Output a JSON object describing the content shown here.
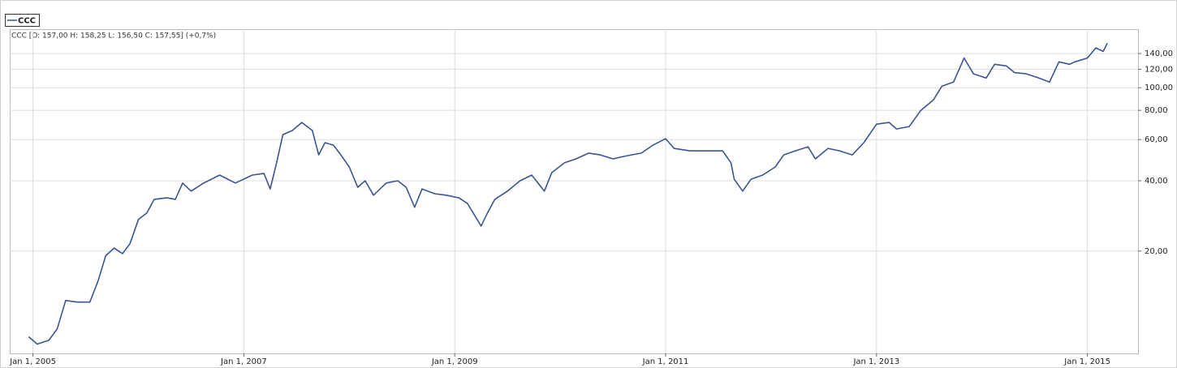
{
  "chart_data": {
    "type": "line",
    "annotation": "CCC [O: 157,00  H: 158,25  L: 156,50  C: 157,55] (+0,7%)",
    "log_scale": true,
    "grid": true,
    "legend": "top-left",
    "x": [
      2004.96,
      2005.04,
      2005.15,
      2005.23,
      2005.31,
      2005.42,
      2005.54,
      2005.62,
      2005.69,
      2005.77,
      2005.85,
      2005.92,
      2006.0,
      2006.08,
      2006.15,
      2006.27,
      2006.35,
      2006.42,
      2006.5,
      2006.62,
      2006.77,
      2006.92,
      2007.08,
      2007.19,
      2007.25,
      2007.31,
      2007.37,
      2007.46,
      2007.55,
      2007.65,
      2007.71,
      2007.77,
      2007.85,
      2007.92,
      2008.0,
      2008.08,
      2008.15,
      2008.23,
      2008.35,
      2008.46,
      2008.54,
      2008.62,
      2008.69,
      2008.81,
      2008.92,
      2009.04,
      2009.12,
      2009.19,
      2009.25,
      2009.31,
      2009.38,
      2009.5,
      2009.62,
      2009.73,
      2009.85,
      2009.92,
      2010.04,
      2010.15,
      2010.27,
      2010.38,
      2010.5,
      2010.62,
      2010.77,
      2010.88,
      2011.0,
      2011.08,
      2011.23,
      2011.38,
      2011.54,
      2011.62,
      2011.65,
      2011.73,
      2011.81,
      2011.92,
      2012.04,
      2012.12,
      2012.23,
      2012.35,
      2012.42,
      2012.54,
      2012.65,
      2012.77,
      2012.88,
      2013.0,
      2013.12,
      2013.19,
      2013.31,
      2013.42,
      2013.54,
      2013.62,
      2013.73,
      2013.83,
      2013.92,
      2014.04,
      2014.12,
      2014.23,
      2014.31,
      2014.42,
      2014.54,
      2014.64,
      2014.73,
      2014.83,
      2014.88,
      2015.0,
      2015.08,
      2015.15,
      2015.19
    ],
    "series": [
      {
        "name": "CCC",
        "color": "#3a5592",
        "values": [
          8.6,
          8.0,
          8.3,
          9.3,
          12.3,
          12.1,
          12.1,
          15.0,
          19.1,
          20.6,
          19.5,
          21.5,
          27.3,
          29.1,
          33.3,
          33.8,
          33.3,
          39.1,
          36.1,
          39.1,
          42.3,
          39.1,
          42.3,
          43.0,
          36.9,
          47.7,
          63,
          65.6,
          71,
          65.6,
          51.6,
          58.2,
          56.8,
          51.6,
          45.8,
          37.5,
          40,
          34.7,
          39.1,
          40,
          37.5,
          30.8,
          36.9,
          35.2,
          34.7,
          33.8,
          32,
          28.4,
          25.6,
          29.1,
          33.3,
          36.1,
          40,
          42.3,
          36.1,
          43.3,
          47.7,
          49.6,
          52.5,
          51.6,
          49.6,
          51,
          52.5,
          56.8,
          60.5,
          55,
          53.7,
          53.7,
          53.7,
          47.7,
          40.6,
          36.1,
          40.6,
          42.3,
          45.8,
          51.6,
          53.7,
          55.9,
          49.6,
          55,
          53.7,
          51.6,
          58.2,
          69.8,
          71,
          66.6,
          68.2,
          80,
          88.7,
          101.6,
          105.7,
          134,
          114.6,
          110,
          126,
          124,
          116,
          114.6,
          110,
          105.7,
          129,
          126,
          129,
          134,
          148,
          143,
          155
        ]
      }
    ],
    "xlim": [
      2004.78,
      2015.48
    ],
    "xticks": [
      {
        "value": 2005,
        "label": "Jan 1, 2005"
      },
      {
        "value": 2007,
        "label": "Jan 1, 2007"
      },
      {
        "value": 2009,
        "label": "Jan 1, 2009"
      },
      {
        "value": 2011,
        "label": "Jan 1, 2011"
      },
      {
        "value": 2013,
        "label": "Jan 1, 2013"
      },
      {
        "value": 2015,
        "label": "Jan 1, 2015"
      }
    ],
    "ylim": [
      7.3,
      178
    ],
    "yticks": [
      {
        "value": 20,
        "label": "20,00"
      },
      {
        "value": 40,
        "label": "40,00"
      },
      {
        "value": 60,
        "label": "60,00"
      },
      {
        "value": 80,
        "label": "80,00"
      },
      {
        "value": 100,
        "label": "100,00"
      },
      {
        "value": 120,
        "label": "120,00"
      },
      {
        "value": 140,
        "label": "140,00"
      }
    ]
  }
}
